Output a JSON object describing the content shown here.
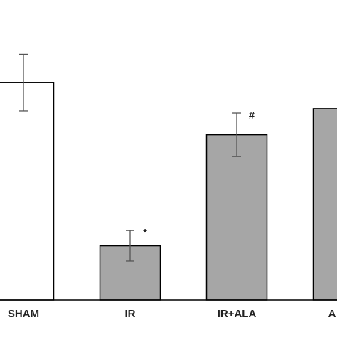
{
  "chart_data": {
    "type": "bar",
    "categories": [
      "SHAM",
      "IR",
      "IR+ALA",
      "A"
    ],
    "values": [
      100,
      25,
      76,
      88
    ],
    "errors": [
      13,
      7,
      10,
      null
    ],
    "colors": [
      "#ffffff",
      "#a6a6a6",
      "#a6a6a6",
      "#a6a6a6"
    ],
    "ylim": [
      0,
      138
    ],
    "annotations": [
      {
        "text": "*",
        "category": 1
      },
      {
        "text": "#",
        "category": 2
      }
    ]
  }
}
